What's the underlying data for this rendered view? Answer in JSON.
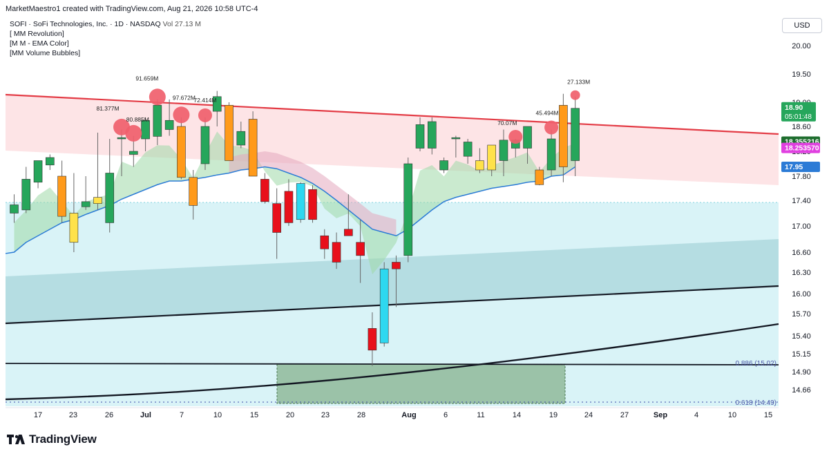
{
  "header": {
    "created_line": "MarketMaestro1 created with TradingView.com, Aug 21, 2026 10:58 UTC-4"
  },
  "legend": {
    "symbol_line": "SOFI · SoFi Technologies, Inc. · 1D · NASDAQ",
    "vol_label": "Vol",
    "vol_value": "27.13 M",
    "indicators": [
      "[ MM Revolution]",
      "[M M - EMA Color]",
      "[MM Volume Bubbles]"
    ]
  },
  "currency": "USD",
  "footer": {
    "brand": "TradingView"
  },
  "colors": {
    "up": "#26a65b",
    "down": "#e8101b",
    "orange": "#ff9a1a",
    "yellow": "#ffe24a",
    "cyan": "#2ed8f0",
    "resistance": "#e33b45",
    "ema": "#2b7bd6",
    "bubble": "#f0606c"
  },
  "chart_data": {
    "type": "candlestick",
    "title": "SOFI · SoFi Technologies, Inc. · 1D · NASDAQ",
    "y_axis": {
      "ticks": [
        "20.00",
        "19.50",
        "19.00",
        "18.60",
        "18.20",
        "17.80",
        "17.40",
        "17.00",
        "16.60",
        "16.30",
        "16.00",
        "15.70",
        "15.40",
        "15.15",
        "14.90",
        "14.66"
      ],
      "ylim": [
        14.45,
        20.4
      ],
      "price_labels": [
        {
          "text": "18.90",
          "sub": "05:01:48",
          "value": 18.9,
          "color": "#26a65b"
        },
        {
          "text": "18.355216",
          "value": 18.355,
          "color": "#1f6e2f"
        },
        {
          "text": "18.253570",
          "value": 18.254,
          "color": "#e040e0"
        },
        {
          "text": "17.95",
          "value": 17.95,
          "color": "#2b7bd6"
        }
      ]
    },
    "x_axis": {
      "ticks": [
        "17",
        "23",
        "26",
        "Jul",
        "7",
        "10",
        "15",
        "20",
        "23",
        "28",
        "Aug",
        "6",
        "11",
        "14",
        "19",
        "24",
        "27",
        "Sep",
        "4",
        "10",
        "15"
      ],
      "bold_ticks": [
        "Jul",
        "Aug",
        "Sep"
      ]
    },
    "candles": [
      {
        "o": 17.2,
        "h": 17.5,
        "l": 17.05,
        "c": 17.33,
        "color": "up"
      },
      {
        "o": 17.25,
        "h": 17.95,
        "l": 17.2,
        "c": 17.75,
        "color": "up"
      },
      {
        "o": 17.7,
        "h": 18.05,
        "l": 17.6,
        "c": 18.05,
        "color": "up"
      },
      {
        "o": 17.98,
        "h": 18.15,
        "l": 17.9,
        "c": 18.1,
        "color": "up"
      },
      {
        "o": 17.8,
        "h": 18.05,
        "l": 17.05,
        "c": 17.15,
        "color": "orange"
      },
      {
        "o": 17.2,
        "h": 17.85,
        "l": 16.6,
        "c": 16.75,
        "color": "yellow"
      },
      {
        "o": 17.3,
        "h": 17.8,
        "l": 17.25,
        "c": 17.38,
        "color": "up"
      },
      {
        "o": 17.35,
        "h": 18.5,
        "l": 17.25,
        "c": 17.45,
        "color": "yellow"
      },
      {
        "o": 17.05,
        "h": 18.4,
        "l": 16.9,
        "c": 17.85,
        "color": "up"
      },
      {
        "o": 18.4,
        "h": 18.55,
        "l": 17.8,
        "c": 18.42,
        "color": "up"
      },
      {
        "o": 18.15,
        "h": 18.45,
        "l": 17.95,
        "c": 18.2,
        "color": "up"
      },
      {
        "o": 18.4,
        "h": 18.75,
        "l": 18.2,
        "c": 18.7,
        "color": "up"
      },
      {
        "o": 18.44,
        "h": 19.05,
        "l": 18.3,
        "c": 18.95,
        "color": "up"
      },
      {
        "o": 18.7,
        "h": 19.05,
        "l": 18.45,
        "c": 18.55,
        "color": "up"
      },
      {
        "o": 18.6,
        "h": 18.75,
        "l": 17.75,
        "c": 17.78,
        "color": "orange"
      },
      {
        "o": 17.78,
        "h": 17.9,
        "l": 17.1,
        "c": 17.32,
        "color": "orange"
      },
      {
        "o": 18.6,
        "h": 18.75,
        "l": 17.9,
        "c": 18.0,
        "color": "up"
      },
      {
        "o": 19.1,
        "h": 19.2,
        "l": 18.6,
        "c": 18.85,
        "color": "up"
      },
      {
        "o": 18.95,
        "h": 19.0,
        "l": 18.05,
        "c": 18.05,
        "color": "orange"
      },
      {
        "o": 18.52,
        "h": 18.68,
        "l": 18.25,
        "c": 18.3,
        "color": "up"
      },
      {
        "o": 18.72,
        "h": 18.85,
        "l": 17.85,
        "c": 17.8,
        "color": "orange"
      },
      {
        "o": 17.75,
        "h": 17.85,
        "l": 17.35,
        "c": 17.38,
        "color": "down"
      },
      {
        "o": 17.35,
        "h": 17.6,
        "l": 16.5,
        "c": 16.9,
        "color": "down"
      },
      {
        "o": 17.55,
        "h": 17.75,
        "l": 17.0,
        "c": 17.05,
        "color": "down"
      },
      {
        "o": 17.1,
        "h": 17.7,
        "l": 17.05,
        "c": 17.68,
        "color": "cyan"
      },
      {
        "o": 17.58,
        "h": 17.65,
        "l": 17.05,
        "c": 17.1,
        "color": "down"
      },
      {
        "o": 16.85,
        "h": 16.95,
        "l": 16.5,
        "c": 16.65,
        "color": "down"
      },
      {
        "o": 16.75,
        "h": 16.9,
        "l": 16.35,
        "c": 16.45,
        "color": "down"
      },
      {
        "o": 16.95,
        "h": 17.5,
        "l": 16.85,
        "c": 16.85,
        "color": "down"
      },
      {
        "o": 16.75,
        "h": 17.1,
        "l": 16.15,
        "c": 16.55,
        "color": "down"
      },
      {
        "o": 15.5,
        "h": 15.72,
        "l": 14.98,
        "c": 15.2,
        "color": "down"
      },
      {
        "o": 15.3,
        "h": 16.45,
        "l": 15.25,
        "c": 16.35,
        "color": "cyan"
      },
      {
        "o": 16.45,
        "h": 16.55,
        "l": 15.8,
        "c": 16.35,
        "color": "down"
      },
      {
        "o": 16.55,
        "h": 18.1,
        "l": 16.45,
        "c": 18.0,
        "color": "up"
      },
      {
        "o": 18.25,
        "h": 18.75,
        "l": 18.2,
        "c": 18.63,
        "color": "up"
      },
      {
        "o": 18.25,
        "h": 18.75,
        "l": 18.15,
        "c": 18.68,
        "color": "up"
      },
      {
        "o": 17.9,
        "h": 18.1,
        "l": 17.85,
        "c": 18.05,
        "color": "up"
      },
      {
        "o": 18.4,
        "h": 18.45,
        "l": 18.1,
        "c": 18.42,
        "color": "up"
      },
      {
        "o": 18.12,
        "h": 18.4,
        "l": 18.0,
        "c": 18.35,
        "color": "up"
      },
      {
        "o": 18.05,
        "h": 18.25,
        "l": 17.85,
        "c": 17.9,
        "color": "yellow"
      },
      {
        "o": 17.9,
        "h": 18.3,
        "l": 17.8,
        "c": 18.3,
        "color": "yellow"
      },
      {
        "o": 18.05,
        "h": 18.55,
        "l": 17.8,
        "c": 18.38,
        "color": "up"
      },
      {
        "o": 18.25,
        "h": 18.4,
        "l": 18.1,
        "c": 18.38,
        "color": "up"
      },
      {
        "o": 18.25,
        "h": 18.6,
        "l": 18.0,
        "c": 18.6,
        "color": "up"
      },
      {
        "o": 17.9,
        "h": 17.95,
        "l": 17.65,
        "c": 17.66,
        "color": "orange"
      },
      {
        "o": 17.9,
        "h": 18.55,
        "l": 17.8,
        "c": 18.4,
        "color": "up"
      },
      {
        "o": 18.95,
        "h": 19.15,
        "l": 17.7,
        "c": 17.95,
        "color": "orange"
      },
      {
        "o": 18.05,
        "h": 19.1,
        "l": 17.8,
        "c": 18.9,
        "color": "up"
      }
    ],
    "ema": [
      16.6,
      16.75,
      16.85,
      16.95,
      17.05,
      17.1,
      17.18,
      17.25,
      17.32,
      17.42,
      17.5,
      17.58,
      17.66,
      17.72,
      17.72,
      17.75,
      17.78,
      17.82,
      17.85,
      17.9,
      17.92,
      17.95,
      17.92,
      17.85,
      17.78,
      17.68,
      17.55,
      17.4,
      17.25,
      17.1,
      16.95,
      16.9,
      16.85,
      16.95,
      17.1,
      17.25,
      17.38,
      17.45,
      17.5,
      17.55,
      17.6,
      17.63,
      17.66,
      17.7,
      17.72,
      17.8,
      17.82,
      17.95
    ],
    "volume_bubbles": [
      {
        "candle": 12,
        "label": "91.659M",
        "size": "large"
      },
      {
        "candle": 9,
        "label": "81.377M",
        "size": "large"
      },
      {
        "candle": 10,
        "label": "80.885M",
        "size": "large"
      },
      {
        "candle": 14,
        "label": "97.672M",
        "size": "large"
      },
      {
        "candle": 16,
        "label": "72.414M",
        "size": "medium"
      },
      {
        "candle": 42,
        "label": "70.07M",
        "size": "medium"
      },
      {
        "candle": 45,
        "label": "45.494M",
        "size": "medium"
      },
      {
        "candle": 47,
        "label": "27.133M",
        "size": "small"
      }
    ],
    "fib_labels": [
      {
        "text": "0.886 (15.02)",
        "value": 15.02
      },
      {
        "text": "0.618 (14.49)",
        "value": 14.49
      }
    ]
  }
}
